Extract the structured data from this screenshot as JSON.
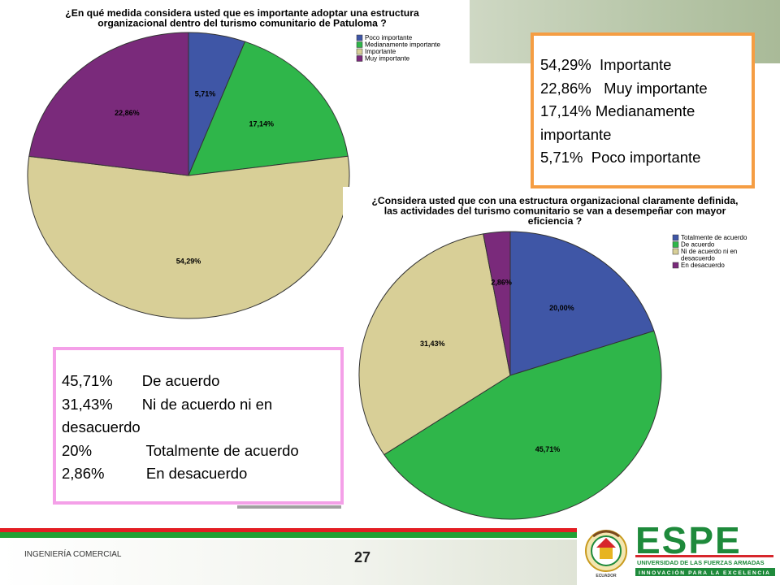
{
  "chart_data": [
    {
      "type": "pie",
      "title": "¿En qué medida considera usted que es importante adoptar una estructura organizacional dentro del turismo comunitario de Patuloma ?",
      "title_lines": [
        "¿En qué medida considera usted que es importante adoptar una estructura",
        "organizacional dentro del turismo comunitario de Patuloma ?"
      ],
      "slices": [
        {
          "label": "Poco importante",
          "value": 5.71,
          "text": "5,71%",
          "color": "#3f56a6"
        },
        {
          "label": "Medianamente importante",
          "value": 17.14,
          "text": "17,14%",
          "color": "#2fb64a"
        },
        {
          "label": "Importante",
          "value": 54.29,
          "text": "54,29%",
          "color": "#d8cf97"
        },
        {
          "label": "Muy importante",
          "value": 22.86,
          "text": "22,86%",
          "color": "#7a2a7b"
        }
      ],
      "legend_position": "top-right"
    },
    {
      "type": "pie",
      "title": "¿Considera usted que con una estructura organizacional claramente definida, las actividades del turismo comunitario se van a desempeñar con mayor eficiencia ?",
      "title_lines": [
        "¿Considera usted que con una estructura organizacional claramente definida,",
        "las actividades del turismo comunitario se van a desempeñar con mayor",
        "eficiencia ?"
      ],
      "slices": [
        {
          "label": "Totalmente de acuerdo",
          "value": 20.0,
          "text": "20,00%",
          "color": "#3f56a6"
        },
        {
          "label": "De acuerdo",
          "value": 45.71,
          "text": "45,71%",
          "color": "#2fb64a"
        },
        {
          "label": "Ni de acuerdo ni en desacuerdo",
          "value": 31.43,
          "text": "31,43%",
          "color": "#d8cf97"
        },
        {
          "label": "En desacuerdo",
          "value": 2.86,
          "text": "2,86%",
          "color": "#7a2a7b"
        }
      ],
      "legend_lines": [
        [
          "Totalmente de acuerdo"
        ],
        [
          "De acuerdo"
        ],
        [
          "Ni de acuerdo ni en",
          "desacuerdo"
        ],
        [
          "En desacuerdo"
        ]
      ],
      "legend_position": "top-right"
    }
  ],
  "notes": {
    "box1": [
      "54,29%  Importante",
      "22,86%   Muy importante",
      "17,14% Medianamente",
      "importante",
      "5,71%  Poco importante"
    ],
    "box2": [
      "45,71%       De acuerdo",
      "31,43%       Ni de acuerdo ni en",
      "desacuerdo",
      "20%             Totalmente de acuerdo",
      "2,86%          En desacuerdo"
    ]
  },
  "footer": {
    "label": "INGENIERÍA  COMERCIAL",
    "page_number": "27"
  },
  "logo": {
    "wordmark": "ESPE",
    "line1": "UNIVERSIDAD DE LAS FUERZAS ARMADAS",
    "line2": "INNOVACIÓN PARA LA EXCELENCIA",
    "seal_text": "ECUADOR",
    "colors": {
      "green": "#1e8a3b",
      "red": "#d7262c",
      "gold": "#e7b421"
    }
  }
}
